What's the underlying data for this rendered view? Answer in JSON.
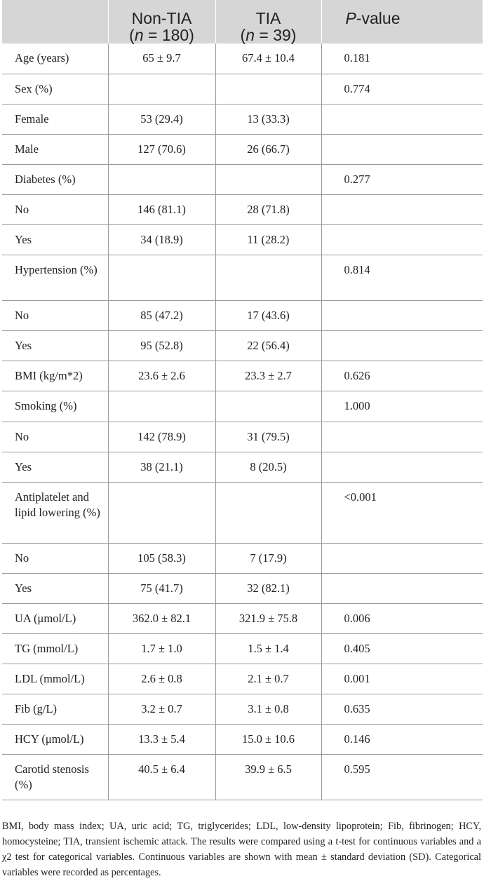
{
  "table": {
    "headers": {
      "col2": {
        "line1": "Non-TIA",
        "n_var": "n",
        "n_rest": " = 180)"
      },
      "col3": {
        "line1": "TIA",
        "n_var": "n",
        "n_rest": " = 39)"
      },
      "col4": {
        "p_var": "P",
        "p_rest": "-value"
      }
    },
    "rows": [
      {
        "label": "Age (years)",
        "nontia": "65 ± 9.7",
        "tia": "67.4 ± 10.4",
        "p": "0.181"
      },
      {
        "label": "Sex (%)",
        "nontia": "",
        "tia": "",
        "p": "0.774"
      },
      {
        "label": "Female",
        "nontia": "53 (29.4)",
        "tia": "13 (33.3)",
        "p": ""
      },
      {
        "label": "Male",
        "nontia": "127 (70.6)",
        "tia": "26 (66.7)",
        "p": ""
      },
      {
        "label": "Diabetes (%)",
        "nontia": "",
        "tia": "",
        "p": "0.277"
      },
      {
        "label": "No",
        "nontia": "146 (81.1)",
        "tia": "28 (71.8)",
        "p": ""
      },
      {
        "label": "Yes",
        "nontia": "34 (18.9)",
        "tia": "11 (28.2)",
        "p": ""
      },
      {
        "label": "Hypertension (%)",
        "nontia": "",
        "tia": "",
        "p": "0.814"
      },
      {
        "label": "No",
        "nontia": "85 (47.2)",
        "tia": "17 (43.6)",
        "p": ""
      },
      {
        "label": "Yes",
        "nontia": "95 (52.8)",
        "tia": "22 (56.4)",
        "p": ""
      },
      {
        "label": "BMI (kg/m*2)",
        "nontia": "23.6 ± 2.6",
        "tia": "23.3 ± 2.7",
        "p": "0.626"
      },
      {
        "label": "Smoking (%)",
        "nontia": "",
        "tia": "",
        "p": "1.000"
      },
      {
        "label": "No",
        "nontia": "142 (78.9)",
        "tia": "31 (79.5)",
        "p": ""
      },
      {
        "label": "Yes",
        "nontia": "38 (21.1)",
        "tia": "8 (20.5)",
        "p": ""
      },
      {
        "label": "Antiplatelet and lipid lowering (%)",
        "nontia": "",
        "tia": "",
        "p": "<0.001"
      },
      {
        "label": "No",
        "nontia": "105 (58.3)",
        "tia": "7 (17.9)",
        "p": ""
      },
      {
        "label": "Yes",
        "nontia": "75 (41.7)",
        "tia": "32 (82.1)",
        "p": ""
      },
      {
        "label": "UA (μmol/L)",
        "nontia": "362.0 ± 82.1",
        "tia": "321.9 ± 75.8",
        "p": "0.006"
      },
      {
        "label": "TG (mmol/L)",
        "nontia": "1.7 ± 1.0",
        "tia": "1.5 ± 1.4",
        "p": "0.405"
      },
      {
        "label": "LDL (mmol/L)",
        "nontia": "2.6 ± 0.8",
        "tia": "2.1 ± 0.7",
        "p": "0.001"
      },
      {
        "label": "Fib (g/L)",
        "nontia": "3.2 ± 0.7",
        "tia": "3.1 ± 0.8",
        "p": "0.635"
      },
      {
        "label": "HCY (μmol/L)",
        "nontia": "13.3 ± 5.4",
        "tia": "15.0 ± 10.6",
        "p": "0.146"
      },
      {
        "label": "Carotid stenosis (%)",
        "nontia": "40.5 ± 6.4",
        "tia": "39.9 ± 6.5",
        "p": "0.595"
      }
    ]
  },
  "footnote": "BMI, body mass index; UA, uric acid; TG, triglycerides; LDL, low-density lipoprotein; Fib, fibrinogen; HCY, homocysteine; TIA, transient ischemic attack. The results were compared using a t-test for continuous variables and a χ2 test for categorical variables. Continuous variables are shown with mean ± standard deviation (SD). Categorical variables were recorded as percentages."
}
